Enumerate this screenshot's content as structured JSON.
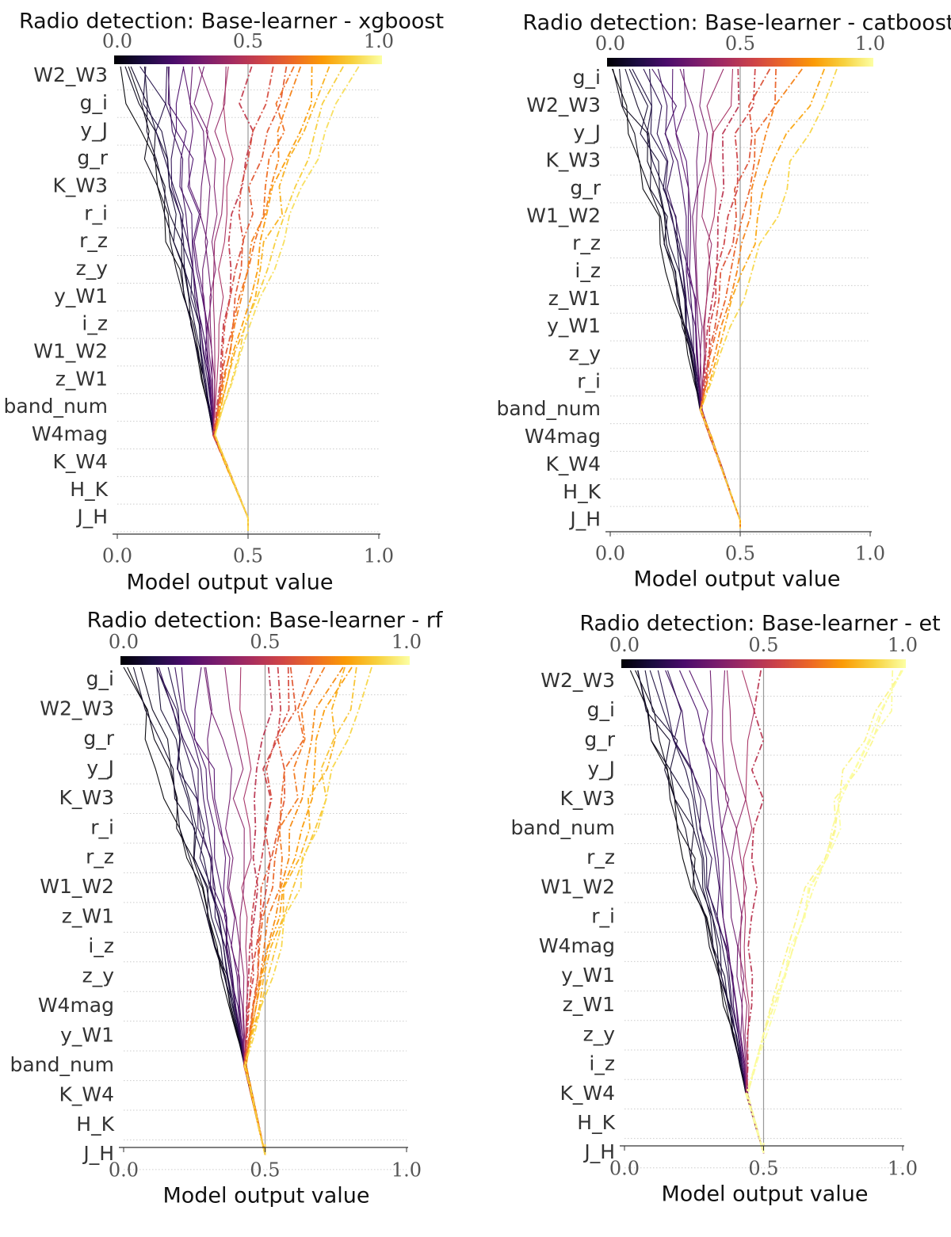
{
  "colors": {
    "colormap": [
      "#000004",
      "#1b0c41",
      "#4a0c6b",
      "#781c6d",
      "#a52c60",
      "#cf4446",
      "#ed6925",
      "#fb9b06",
      "#f7d13d",
      "#fcffa4"
    ],
    "gridline": "#cccccc",
    "center_line": "#999999",
    "axis": "#333333"
  },
  "chart_data": [
    {
      "type": "decision-plot",
      "title": "Radio detection:  Base-learner - xgboost",
      "xlabel": "Model output value",
      "xlim": [
        0.0,
        1.0
      ],
      "x_ticks": [
        "0.0",
        "0.5",
        "1.0"
      ],
      "colorbar_ticks": [
        "0.0",
        "0.5",
        "1.0"
      ],
      "base_value": 0.5,
      "features": [
        "W2_W3",
        "g_i",
        "y_J",
        "g_r",
        "K_W3",
        "r_i",
        "r_z",
        "z_y",
        "y_W1",
        "i_z",
        "W1_W2",
        "z_W1",
        "band_num",
        "W4mag",
        "K_W4",
        "H_K",
        "J_H"
      ],
      "top_outputs": [
        0.0,
        0.02,
        0.04,
        0.06,
        0.08,
        0.1,
        0.12,
        0.15,
        0.18,
        0.2,
        0.22,
        0.25,
        0.28,
        0.3,
        0.35,
        0.4,
        0.45,
        0.52,
        0.58,
        0.62,
        0.68,
        0.72,
        0.78,
        0.82,
        0.88,
        0.92
      ],
      "pinch_feature": "W4mag",
      "pinch_output": 0.37
    },
    {
      "type": "decision-plot",
      "title": "Radio detection:  Base-learner - catboost",
      "xlabel": "Model output value",
      "xlim": [
        0.0,
        1.0
      ],
      "x_ticks": [
        "0.0",
        "0.5",
        "1.0"
      ],
      "colorbar_ticks": [
        "0.0",
        "0.5",
        "1.0"
      ],
      "base_value": 0.5,
      "features": [
        "g_i",
        "W2_W3",
        "y_J",
        "K_W3",
        "g_r",
        "W1_W2",
        "r_z",
        "i_z",
        "z_W1",
        "y_W1",
        "z_y",
        "r_i",
        "band_num",
        "W4mag",
        "K_W4",
        "H_K",
        "J_H"
      ],
      "top_outputs": [
        0.0,
        0.02,
        0.04,
        0.06,
        0.08,
        0.1,
        0.12,
        0.14,
        0.17,
        0.2,
        0.23,
        0.26,
        0.3,
        0.34,
        0.4,
        0.45,
        0.5,
        0.55,
        0.6,
        0.65,
        0.72,
        0.8,
        0.9
      ],
      "pinch_feature": "band_num",
      "pinch_output": 0.35
    },
    {
      "type": "decision-plot",
      "title": "Radio detection:  Base-learner - rf",
      "xlabel": "Model output value",
      "xlim": [
        0.0,
        1.0
      ],
      "x_ticks": [
        "0.0",
        "0.5",
        "1.0"
      ],
      "colorbar_ticks": [
        "0.0",
        "0.5",
        "1.0"
      ],
      "base_value": 0.5,
      "features": [
        "g_i",
        "W2_W3",
        "g_r",
        "y_J",
        "K_W3",
        "r_i",
        "r_z",
        "W1_W2",
        "z_W1",
        "i_z",
        "z_y",
        "W4mag",
        "y_W1",
        "band_num",
        "K_W4",
        "H_K",
        "J_H"
      ],
      "top_outputs": [
        0.0,
        0.02,
        0.04,
        0.06,
        0.08,
        0.1,
        0.12,
        0.14,
        0.16,
        0.18,
        0.2,
        0.24,
        0.28,
        0.32,
        0.38,
        0.44,
        0.5,
        0.54,
        0.58,
        0.62,
        0.66,
        0.7,
        0.74,
        0.78,
        0.82,
        0.86,
        0.9
      ],
      "pinch_feature": "band_num",
      "pinch_output": 0.43
    },
    {
      "type": "decision-plot",
      "title": "Radio detection:  Base-learner - et",
      "xlabel": "Model output value",
      "xlim": [
        0.0,
        1.0
      ],
      "x_ticks": [
        "0.0",
        "0.5",
        "1.0"
      ],
      "colorbar_ticks": [
        "0.0",
        "0.5",
        "1.0"
      ],
      "base_value": 0.5,
      "features": [
        "W2_W3",
        "g_i",
        "g_r",
        "y_J",
        "K_W3",
        "band_num",
        "r_z",
        "W1_W2",
        "r_i",
        "W4mag",
        "y_W1",
        "z_W1",
        "z_y",
        "i_z",
        "K_W4",
        "H_K",
        "J_H"
      ],
      "top_outputs": [
        0.0,
        0.02,
        0.04,
        0.06,
        0.08,
        0.1,
        0.12,
        0.15,
        0.18,
        0.21,
        0.25,
        0.3,
        0.35,
        0.4,
        0.45,
        0.5,
        0.97,
        0.98,
        0.99,
        1.0
      ],
      "pinch_feature": "K_W4",
      "pinch_output": 0.44
    }
  ]
}
